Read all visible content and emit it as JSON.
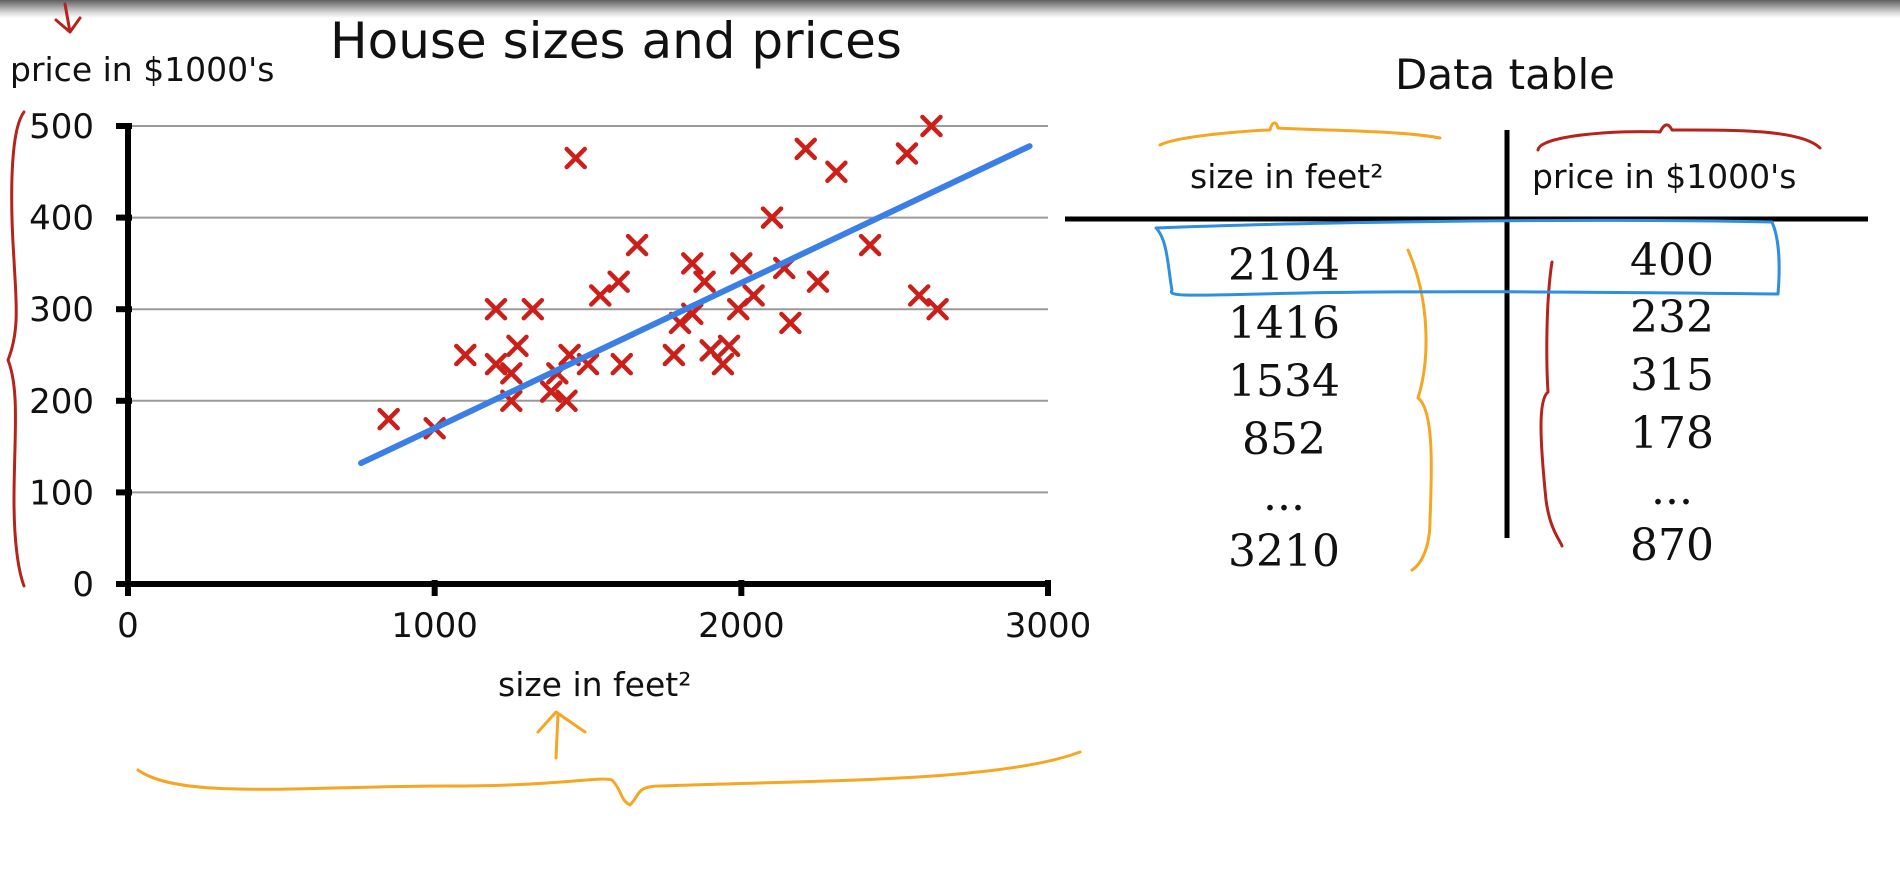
{
  "chart_data": {
    "type": "scatter",
    "title": "House sizes and prices",
    "xlabel": "size in feet²",
    "ylabel": "price in $1000's",
    "xlim": [
      0,
      3000
    ],
    "ylim": [
      0,
      500
    ],
    "xticks": [
      0,
      1000,
      2000,
      3000
    ],
    "yticks": [
      0,
      100,
      200,
      300,
      400,
      500
    ],
    "grid": true,
    "points": [
      [
        850,
        180
      ],
      [
        1000,
        170
      ],
      [
        1100,
        250
      ],
      [
        1200,
        300
      ],
      [
        1200,
        240
      ],
      [
        1250,
        230
      ],
      [
        1250,
        200
      ],
      [
        1270,
        260
      ],
      [
        1320,
        300
      ],
      [
        1380,
        210
      ],
      [
        1400,
        230
      ],
      [
        1430,
        200
      ],
      [
        1440,
        250
      ],
      [
        1460,
        465
      ],
      [
        1500,
        240
      ],
      [
        1540,
        315
      ],
      [
        1600,
        330
      ],
      [
        1610,
        240
      ],
      [
        1660,
        370
      ],
      [
        1780,
        250
      ],
      [
        1800,
        285
      ],
      [
        1840,
        350
      ],
      [
        1840,
        295
      ],
      [
        1880,
        330
      ],
      [
        1900,
        255
      ],
      [
        1940,
        240
      ],
      [
        1960,
        260
      ],
      [
        1990,
        300
      ],
      [
        2000,
        350
      ],
      [
        2040,
        315
      ],
      [
        2100,
        400
      ],
      [
        2140,
        345
      ],
      [
        2160,
        285
      ],
      [
        2210,
        475
      ],
      [
        2250,
        330
      ],
      [
        2310,
        450
      ],
      [
        2420,
        370
      ],
      [
        2540,
        470
      ],
      [
        2580,
        315
      ],
      [
        2620,
        500
      ],
      [
        2640,
        300
      ]
    ],
    "fit_line": {
      "x": [
        760,
        2940
      ],
      "y": [
        132,
        478
      ]
    },
    "colors": {
      "points": "#cc1f1a",
      "line": "#3b7fe6"
    }
  },
  "table": {
    "title": "Data table",
    "headers": [
      "size in feet²",
      "price in $1000's"
    ],
    "sizes": [
      "2104",
      "1416",
      "1534",
      "852",
      "...",
      "3210"
    ],
    "prices": [
      "400",
      "232",
      "315",
      "178",
      "...",
      "870"
    ]
  },
  "annotations": {
    "orange": "#f5a623",
    "red": "#b5231b",
    "blue": "#2f8ee0"
  }
}
